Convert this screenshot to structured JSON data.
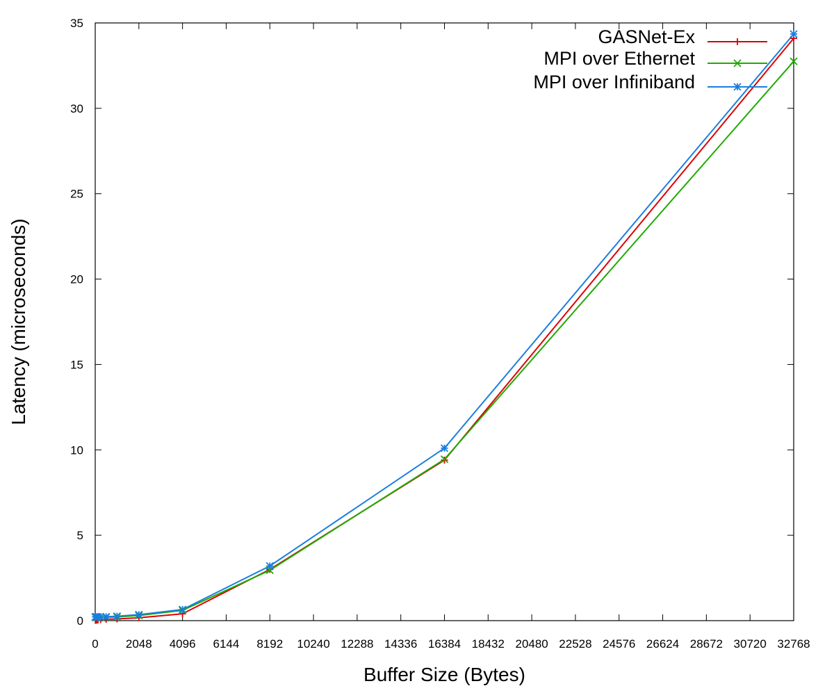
{
  "chart_data": {
    "type": "line",
    "title": "",
    "xlabel": "Buffer Size (Bytes)",
    "ylabel": "Latency (microseconds)",
    "xlim": [
      0,
      32768
    ],
    "ylim": [
      0,
      35
    ],
    "xticks": [
      0,
      2048,
      4096,
      6144,
      8192,
      10240,
      12288,
      14336,
      16384,
      18432,
      20480,
      22528,
      24576,
      26624,
      28672,
      30720,
      32768
    ],
    "yticks": [
      0,
      5,
      10,
      15,
      20,
      25,
      30,
      35
    ],
    "grid": false,
    "legend_position": "top-right",
    "x": [
      8,
      16,
      32,
      64,
      128,
      256,
      512,
      1024,
      2048,
      4096,
      8192,
      16384,
      32768
    ],
    "series": [
      {
        "name": "GASNet-Ex",
        "color": "#dd0000",
        "marker": "plus",
        "values": [
          0.02,
          0.02,
          0.02,
          0.03,
          0.04,
          0.06,
          0.08,
          0.1,
          0.17,
          0.4,
          3.0,
          9.4,
          34.1
        ]
      },
      {
        "name": "MPI over Ethernet",
        "color": "#1eaa00",
        "marker": "cross",
        "values": [
          0.2,
          0.2,
          0.2,
          0.2,
          0.2,
          0.2,
          0.2,
          0.22,
          0.3,
          0.6,
          2.95,
          9.45,
          32.75
        ]
      },
      {
        "name": "MPI over Infiniband",
        "color": "#1a7ee0",
        "marker": "star",
        "values": [
          0.22,
          0.22,
          0.22,
          0.22,
          0.22,
          0.22,
          0.23,
          0.26,
          0.35,
          0.65,
          3.2,
          10.1,
          34.35
        ]
      }
    ]
  }
}
